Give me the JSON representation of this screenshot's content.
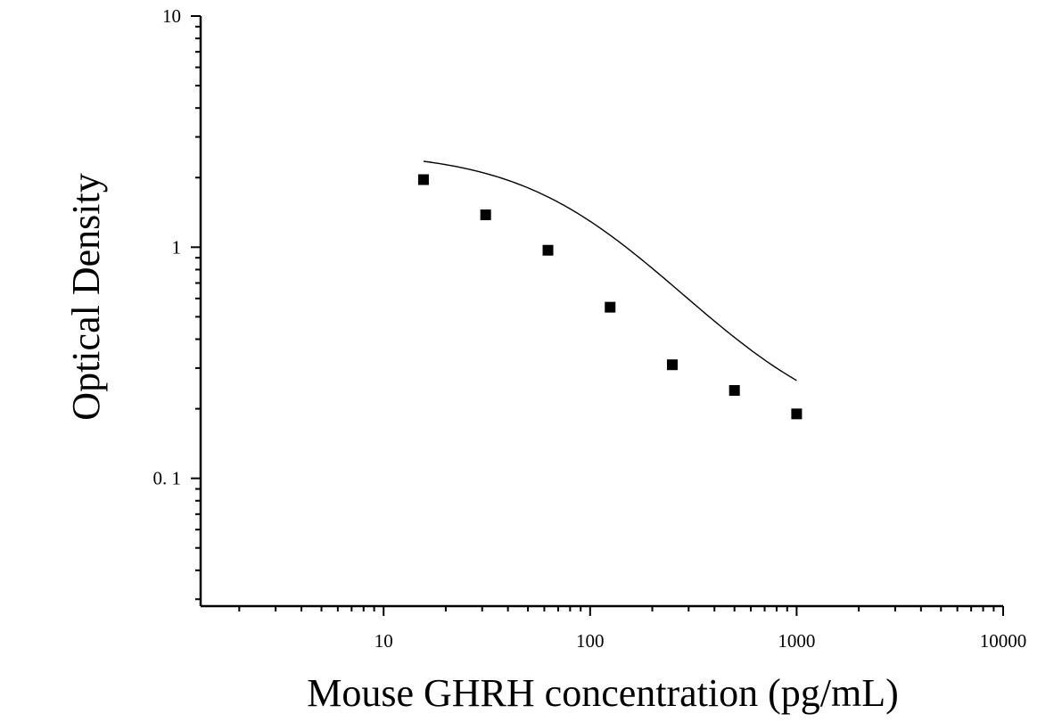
{
  "chart_data": {
    "type": "scatter",
    "title": "",
    "xlabel": "Mouse GHRH concentration (pg/mL)",
    "ylabel": "Optical Density",
    "x_scale": "log",
    "y_scale": "log",
    "xlim": [
      1.3,
      10000
    ],
    "ylim": [
      0.028,
      10
    ],
    "x_tick_values": [
      10,
      100,
      1000,
      10000
    ],
    "x_tick_labels": [
      "10",
      "100",
      "1000",
      "10000"
    ],
    "y_tick_values": [
      0.1,
      1,
      10
    ],
    "y_tick_labels": [
      "0. 1",
      "1",
      "10"
    ],
    "grid": false,
    "legend": "none",
    "series": [
      {
        "marker": "square",
        "color": "#000000",
        "x": [
          15.6,
          31.2,
          62.5,
          125,
          250,
          500,
          1000
        ],
        "y": [
          1.96,
          1.38,
          0.97,
          0.55,
          0.31,
          0.24,
          0.19
        ]
      }
    ],
    "fit_curve": {
      "type": "four-parameter logistic",
      "color": "#000000",
      "x_range": [
        15.6,
        1000
      ],
      "params": {
        "A": 2.6,
        "D": 0.15,
        "C": 90,
        "B": 1.25
      }
    }
  }
}
